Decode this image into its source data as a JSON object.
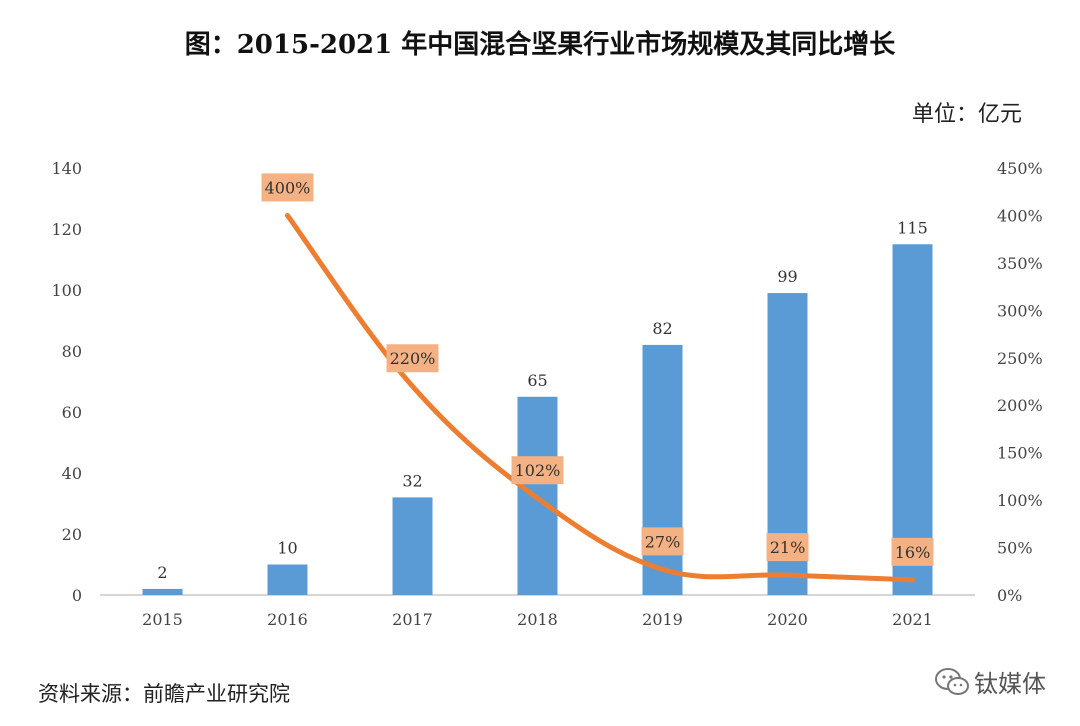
{
  "title": "图：2015-2021 年中国混合坚果行业市场规模及其同比增长",
  "unit": "单位：亿元",
  "source": "资料来源：前瞻产业研究院",
  "watermark": "钛媒体",
  "watermark_icon": "wechat-icon",
  "colors": {
    "bar": "#5b9bd5",
    "line": "#ed7d31",
    "label_bg": "#f4b183"
  },
  "chart_data": {
    "type": "bar",
    "categories": [
      "2015",
      "2016",
      "2017",
      "2018",
      "2019",
      "2020",
      "2021"
    ],
    "series": [
      {
        "type": "bar",
        "axis": "left",
        "values": [
          2,
          10,
          32,
          65,
          82,
          99,
          115
        ]
      },
      {
        "type": "line",
        "axis": "right",
        "values": [
          null,
          400,
          220,
          102,
          27,
          21,
          16
        ],
        "labels": [
          "",
          "400%",
          "220%",
          "102%",
          "27%",
          "21%",
          "16%"
        ]
      }
    ],
    "title": "图：2015-2021 年中国混合坚果行业市场规模及其同比增长",
    "ylim": [
      0,
      140
    ],
    "y_ticks": [
      "0",
      "20",
      "40",
      "60",
      "80",
      "100",
      "120",
      "140"
    ],
    "y2lim": [
      0,
      450
    ],
    "y2_ticks": [
      "0%",
      "50%",
      "100%",
      "150%",
      "200%",
      "250%",
      "300%",
      "350%",
      "400%",
      "450%"
    ],
    "grid": false,
    "legend": "none"
  }
}
